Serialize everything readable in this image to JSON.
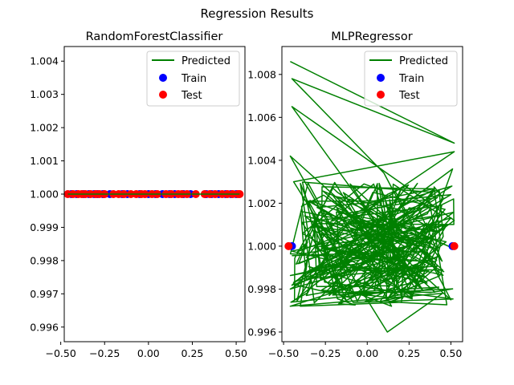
{
  "figure": {
    "suptitle": "Regression Results"
  },
  "legend_position": "top-right",
  "colors": {
    "predicted": "#008000",
    "train": "#0000ff",
    "test": "#ff0000"
  },
  "chart_data": [
    {
      "type": "line",
      "title": "RandomForestClassifier",
      "xlabel": "",
      "ylabel": "",
      "xlim": [
        -0.48,
        0.55
      ],
      "ylim": [
        0.99556,
        1.00444
      ],
      "xticks": [
        -0.5,
        -0.25,
        0.0,
        0.25,
        0.5
      ],
      "xtick_labels": [
        "−0.50",
        "−0.25",
        "0.00",
        "0.25",
        "0.50"
      ],
      "yticks": [
        0.996,
        0.997,
        0.998,
        0.999,
        1.0,
        1.001,
        1.002,
        1.003,
        1.004
      ],
      "ytick_labels": [
        "0.996",
        "0.997",
        "0.998",
        "0.999",
        "1.000",
        "1.001",
        "1.002",
        "1.003",
        "1.004"
      ],
      "legend": [
        "Predicted",
        "Train",
        "Test"
      ],
      "series": [
        {
          "name": "Predicted",
          "kind": "line",
          "x": [
            -0.46,
            0.52
          ],
          "y": [
            1.0,
            1.0
          ]
        },
        {
          "name": "Train",
          "kind": "scatter",
          "y_constant": 1.0,
          "x": [
            -0.44,
            -0.41,
            -0.37,
            -0.34,
            -0.31,
            -0.29,
            -0.26,
            -0.22,
            -0.15,
            -0.12,
            -0.05,
            0.0,
            0.04,
            0.08,
            0.12,
            0.15,
            0.2,
            0.24,
            0.33,
            0.36,
            0.4,
            0.44,
            0.47,
            0.5
          ]
        },
        {
          "name": "Test",
          "kind": "scatter",
          "y_constant": 1.0,
          "x": [
            -0.46,
            -0.43,
            -0.4,
            -0.38,
            -0.36,
            -0.33,
            -0.3,
            -0.28,
            -0.25,
            -0.2,
            -0.17,
            -0.14,
            -0.1,
            -0.07,
            -0.04,
            -0.02,
            0.02,
            0.05,
            0.1,
            0.13,
            0.17,
            0.19,
            0.22,
            0.27,
            0.32,
            0.35,
            0.38,
            0.42,
            0.45,
            0.48,
            0.51,
            0.52
          ]
        }
      ]
    },
    {
      "type": "line",
      "title": "MLPRegressor",
      "xlabel": "",
      "ylabel": "",
      "xlim": [
        -0.51,
        0.57
      ],
      "ylim": [
        0.99555,
        1.0093
      ],
      "xticks": [
        -0.5,
        -0.25,
        0.0,
        0.25,
        0.5
      ],
      "xtick_labels": [
        "−0.50",
        "−0.25",
        "0.00",
        "0.25",
        "0.50"
      ],
      "yticks": [
        0.996,
        0.998,
        1.0,
        1.002,
        1.004,
        1.006,
        1.008
      ],
      "ytick_labels": [
        "0.996",
        "0.998",
        "1.000",
        "1.002",
        "1.004",
        "1.006",
        "1.008"
      ],
      "legend": [
        "Predicted",
        "Train",
        "Test"
      ],
      "predicted_note": "dense zig-zag line; predictions span roughly 0.9960 to 1.0086 across x from -0.47 to 0.52",
      "series": [
        {
          "name": "Predicted",
          "kind": "line",
          "x": [
            -0.46,
            0.52,
            -0.45,
            0.1,
            0.5,
            -0.46,
            -0.2,
            0.52,
            -0.44,
            0.12,
            0.45,
            -0.46,
            0.3,
            0.51,
            -0.43,
            -0.1,
            0.52,
            -0.45,
            0.2,
            -0.46,
            0.5,
            -0.3,
            0.46
          ],
          "y": [
            1.0086,
            1.0048,
            1.0078,
            1.0034,
            0.9975,
            1.0042,
            1.0006,
            1.0044,
            1.003,
            0.996,
            0.9978,
            0.9972,
            0.9991,
            1.0036,
            0.9982,
            0.9976,
            1.0012,
            1.0065,
            0.9995,
            0.998,
            1.0024,
            1.0018,
            0.9988
          ]
        },
        {
          "name": "Train",
          "kind": "scatter",
          "y_constant": 1.0,
          "x": [
            -0.45,
            0.51
          ]
        },
        {
          "name": "Test",
          "kind": "scatter",
          "y_constant": 1.0,
          "x": [
            -0.47,
            0.52
          ]
        }
      ]
    }
  ]
}
